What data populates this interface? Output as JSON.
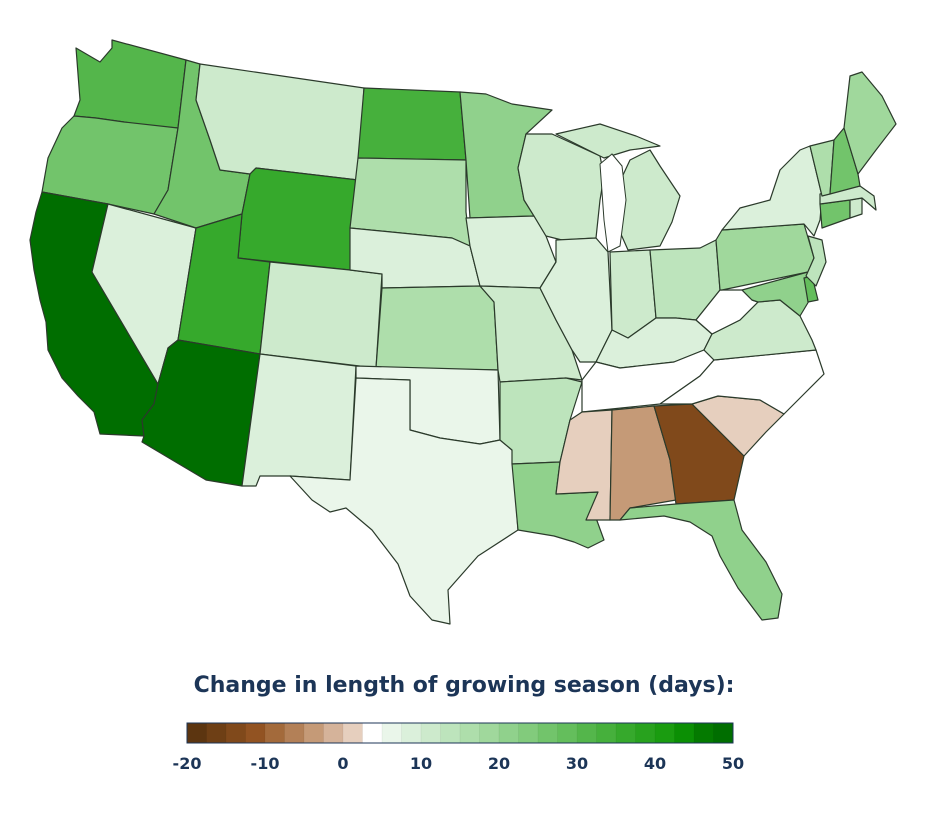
{
  "legend": {
    "title": "Change in length of growing season (days):",
    "min": -20,
    "max": 50,
    "step": 2.5,
    "ticks": [
      "-20",
      "-10",
      "0",
      "10",
      "20",
      "30",
      "40",
      "50"
    ],
    "tick_values": [
      -20,
      -10,
      0,
      10,
      20,
      30,
      40,
      50
    ],
    "colors": [
      "#5c3510",
      "#6e3f15",
      "#80491b",
      "#925322",
      "#a36a3b",
      "#b38057",
      "#c59a77",
      "#d5b39a",
      "#e6cfbe",
      "#ffffff",
      "#eaf6ea",
      "#dbf0db",
      "#cdeacc",
      "#bde4bc",
      "#aedeab",
      "#a0d89c",
      "#90d18c",
      "#82cb7c",
      "#72c46b",
      "#64be5c",
      "#54b64b",
      "#46b03c",
      "#36a92c",
      "#28a21e",
      "#1a9c10",
      "#0b8f04",
      "#047a00",
      "#006e00"
    ]
  },
  "states": {
    "WA": {
      "name": "Washington",
      "value": 32
    },
    "OR": {
      "name": "Oregon",
      "value": 25
    },
    "CA": {
      "name": "California",
      "value": 48
    },
    "NV": {
      "name": "Nevada",
      "value": 8
    },
    "ID": {
      "name": "Idaho",
      "value": 25
    },
    "MT": {
      "name": "Montana",
      "value": 10
    },
    "WY": {
      "name": "Wyoming",
      "value": 35
    },
    "UT": {
      "name": "Utah",
      "value": 35
    },
    "AZ": {
      "name": "Arizona",
      "value": 48
    },
    "CO": {
      "name": "Colorado",
      "value": 10
    },
    "NM": {
      "name": "New Mexico",
      "value": 8
    },
    "ND": {
      "name": "North Dakota",
      "value": 33
    },
    "SD": {
      "name": "South Dakota",
      "value": 17
    },
    "NE": {
      "name": "Nebraska",
      "value": 8
    },
    "KS": {
      "name": "Kansas",
      "value": 15
    },
    "OK": {
      "name": "Oklahoma",
      "value": 5
    },
    "TX": {
      "name": "Texas",
      "value": 5
    },
    "MN": {
      "name": "Minnesota",
      "value": 20
    },
    "IA": {
      "name": "Iowa",
      "value": 8
    },
    "MO": {
      "name": "Missouri",
      "value": 10
    },
    "AR": {
      "name": "Arkansas",
      "value": 14
    },
    "LA": {
      "name": "Louisiana",
      "value": 22
    },
    "WI": {
      "name": "Wisconsin",
      "value": 10
    },
    "IL": {
      "name": "Illinois",
      "value": 8
    },
    "MI": {
      "name": "Michigan",
      "value": 10
    },
    "IN": {
      "name": "Indiana",
      "value": 12
    },
    "OH": {
      "name": "Ohio",
      "value": 14
    },
    "KY": {
      "name": "Kentucky",
      "value": 8
    },
    "TN": {
      "name": "Tennessee",
      "value": 3
    },
    "MS": {
      "name": "Mississippi",
      "value": 0
    },
    "AL": {
      "name": "Alabama",
      "value": -5
    },
    "GA": {
      "name": "Georgia",
      "value": -13
    },
    "FL": {
      "name": "Florida",
      "value": 20
    },
    "SC": {
      "name": "South Carolina",
      "value": 0
    },
    "NC": {
      "name": "North Carolina",
      "value": 3
    },
    "VA": {
      "name": "Virginia",
      "value": 10
    },
    "WV": {
      "name": "West Virginia",
      "value": 3
    },
    "PA": {
      "name": "Pennsylvania",
      "value": 18
    },
    "NY": {
      "name": "New York",
      "value": 8
    },
    "NJ": {
      "name": "New Jersey",
      "value": 14
    },
    "DE": {
      "name": "Delaware",
      "value": 28
    },
    "MD": {
      "name": "Maryland",
      "value": 22
    },
    "CT": {
      "name": "Connecticut",
      "value": 25
    },
    "RI": {
      "name": "Rhode Island",
      "value": 10
    },
    "MA": {
      "name": "Massachusetts",
      "value": 10
    },
    "VT": {
      "name": "Vermont",
      "value": 15
    },
    "NH": {
      "name": "New Hampshire",
      "value": 25
    },
    "ME": {
      "name": "Maine",
      "value": 18
    }
  }
}
